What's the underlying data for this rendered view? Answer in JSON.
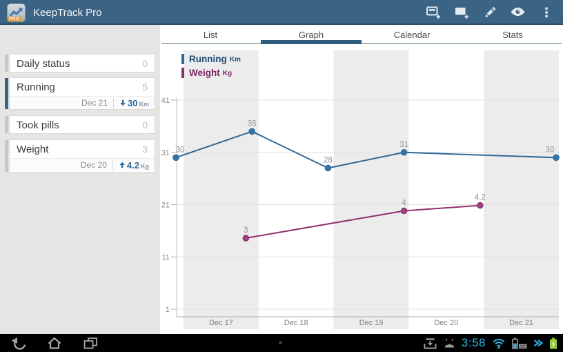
{
  "app": {
    "title": "KeepTrack Pro",
    "badge": "PRO"
  },
  "action_bar": {
    "icons": [
      "add-note-icon",
      "add-entry-icon",
      "edit-icon",
      "view-icon",
      "overflow-menu-icon"
    ]
  },
  "sidebar": {
    "items": [
      {
        "title": "Daily status",
        "count": "0",
        "selected": false
      },
      {
        "title": "Running",
        "count": "5",
        "selected": true,
        "sub": {
          "date": "Dec 21",
          "direction": "down",
          "value": "30",
          "unit": "Km"
        }
      },
      {
        "title": "Took pills",
        "count": "0",
        "selected": false
      },
      {
        "title": "Weight",
        "count": "3",
        "selected": false,
        "sub": {
          "date": "Dec 20",
          "direction": "up",
          "value": "4.2",
          "unit": "Kg"
        }
      }
    ]
  },
  "tabs": [
    {
      "label": "List",
      "active": false
    },
    {
      "label": "Graph",
      "active": true
    },
    {
      "label": "Calendar",
      "active": false
    },
    {
      "label": "Stats",
      "active": false
    }
  ],
  "chart_data": {
    "type": "line",
    "title": "",
    "legend": {
      "position": "top-left",
      "entries": [
        {
          "label": "Running",
          "unit": "Km"
        },
        {
          "label": "Weight",
          "unit": "Kg"
        }
      ]
    },
    "x_axis": {
      "labels": [
        "Dec 17",
        "Dec 18",
        "Dec 19",
        "Dec 20",
        "Dec 21"
      ],
      "domain_days": [
        0,
        5
      ]
    },
    "y_axis": {
      "ticks": [
        41,
        31,
        21,
        11,
        1
      ],
      "grid": true
    },
    "series": [
      {
        "name": "Running",
        "unit": "Km",
        "color": "#2e6898",
        "point_color": "#3575a5",
        "text_color": "#1c4d75",
        "value_label_color": "#8d96a0",
        "axis": "left",
        "points": [
          {
            "x": 0,
            "v": 30
          },
          {
            "x": 1,
            "v": 35
          },
          {
            "x": 2,
            "v": 28
          },
          {
            "x": 3,
            "v": 31
          },
          {
            "x": 5,
            "v": 30
          }
        ]
      },
      {
        "name": "Weight",
        "unit": "Kg",
        "color": "#8e2f6c",
        "point_color": "#9a4180",
        "text_color": "#7b2360",
        "value_label_color": "#a2879a",
        "axis": "hidden",
        "points": [
          {
            "x": 0.92,
            "v": 3
          },
          {
            "x": 3,
            "v": 4
          },
          {
            "x": 4,
            "v": 4.2
          }
        ]
      }
    ],
    "plot_style": {
      "alternating_day_bands": true,
      "band_fill": "#ececec"
    }
  },
  "nav_bar": {
    "time": "3:58",
    "icons": [
      "back-icon",
      "home-icon",
      "recents-icon",
      "download-tray-icon",
      "android-icon",
      "wifi-icon",
      "dock-battery-icon",
      "fast-forward-icon",
      "battery-charging-icon"
    ]
  },
  "colors": {
    "action_bar": "#3b6384",
    "holo_blue": "#33b5e5",
    "selected_item_bar": "#36648b",
    "battery_green": "#97c93d"
  }
}
